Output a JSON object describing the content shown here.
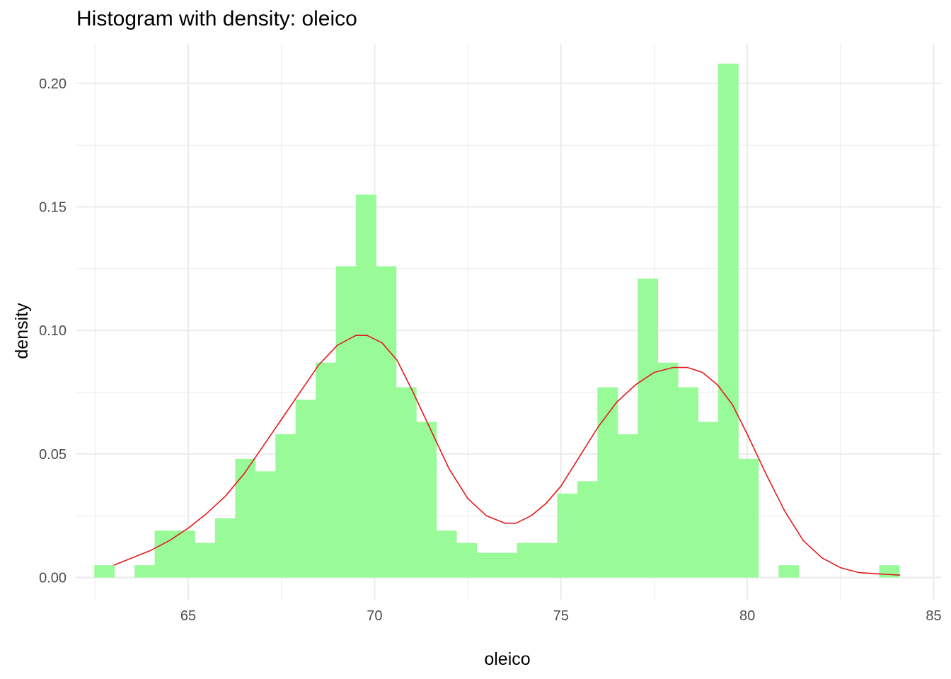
{
  "chart_data": {
    "type": "bar",
    "title": "Histogram with density: oleico",
    "xlabel": "oleico",
    "ylabel": "density",
    "xlim": [
      62.0,
      85.2
    ],
    "ylim": [
      -0.009,
      0.216
    ],
    "grid": true,
    "x_ticks": [
      65,
      70,
      75,
      80,
      85
    ],
    "x_tick_labels": [
      "65",
      "70",
      "75",
      "80",
      "85"
    ],
    "y_ticks": [
      0.0,
      0.05,
      0.1,
      0.15,
      0.2
    ],
    "y_tick_labels": [
      "0.00",
      "0.05",
      "0.10",
      "0.15",
      "0.20"
    ],
    "colors": {
      "bars": "#98fb98",
      "density": "#e31a1c",
      "grid": "#ebebeb"
    },
    "bins": {
      "width": 0.54,
      "left_edges": [
        62.48,
        63.02,
        63.56,
        64.1,
        64.64,
        65.18,
        65.72,
        66.26,
        66.8,
        67.34,
        67.88,
        68.42,
        68.96,
        69.5,
        70.04,
        70.58,
        71.12,
        71.66,
        72.2,
        72.74,
        73.28,
        73.82,
        74.36,
        74.9,
        75.44,
        75.98,
        76.52,
        77.06,
        77.6,
        78.14,
        78.68,
        79.22,
        79.76,
        80.3,
        80.84,
        81.38,
        81.92,
        82.46,
        83.0,
        83.54
      ],
      "density": [
        0.005,
        0.0,
        0.005,
        0.019,
        0.019,
        0.014,
        0.024,
        0.048,
        0.043,
        0.058,
        0.072,
        0.087,
        0.126,
        0.155,
        0.126,
        0.077,
        0.063,
        0.019,
        0.014,
        0.01,
        0.01,
        0.014,
        0.014,
        0.034,
        0.039,
        0.077,
        0.058,
        0.121,
        0.087,
        0.077,
        0.063,
        0.208,
        0.048,
        0.0,
        0.005,
        0.0,
        0.0,
        0.0,
        0.0,
        0.005
      ]
    },
    "density_curve": {
      "x": [
        63.0,
        63.5,
        64.0,
        64.5,
        65.0,
        65.5,
        66.0,
        66.5,
        67.0,
        67.5,
        68.0,
        68.5,
        69.0,
        69.5,
        69.8,
        70.2,
        70.6,
        71.0,
        71.5,
        72.0,
        72.5,
        73.0,
        73.5,
        73.8,
        74.2,
        74.6,
        75.0,
        75.5,
        76.0,
        76.5,
        77.0,
        77.5,
        78.0,
        78.4,
        78.8,
        79.2,
        79.6,
        80.0,
        80.5,
        81.0,
        81.5,
        82.0,
        82.5,
        83.0,
        83.5,
        84.1
      ],
      "y": [
        0.005,
        0.008,
        0.011,
        0.015,
        0.02,
        0.026,
        0.033,
        0.042,
        0.053,
        0.064,
        0.075,
        0.086,
        0.094,
        0.098,
        0.098,
        0.095,
        0.088,
        0.076,
        0.06,
        0.044,
        0.032,
        0.025,
        0.022,
        0.022,
        0.025,
        0.03,
        0.037,
        0.049,
        0.061,
        0.071,
        0.078,
        0.083,
        0.085,
        0.085,
        0.083,
        0.078,
        0.07,
        0.058,
        0.042,
        0.027,
        0.015,
        0.008,
        0.004,
        0.002,
        0.0015,
        0.001
      ]
    }
  }
}
